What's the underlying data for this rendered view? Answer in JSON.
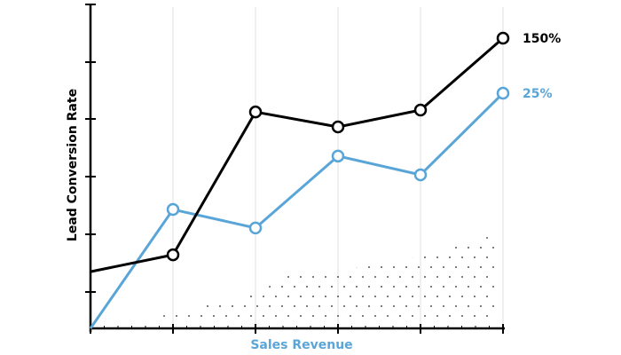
{
  "chart_data": {
    "type": "line",
    "title": "",
    "xlabel": "Sales Revenue",
    "ylabel": "Lead Conversion Rate",
    "x": [
      0,
      1,
      2,
      3,
      4,
      5
    ],
    "ylim": [
      0,
      100
    ],
    "grid": "vertical",
    "series": [
      {
        "values": [
          17.5,
          22.7,
          66.8,
          62.2,
          67.4,
          89.6
        ],
        "color": "#000000",
        "end_label": "150%"
      },
      {
        "values": [
          0,
          36.7,
          31.0,
          53.2,
          47.4,
          72.6
        ],
        "color": "#5aa5d8",
        "end_label": "25%"
      }
    ],
    "colors": {
      "axis": "#000000",
      "xlabel": "#5aa5d8",
      "grid": "#ececec"
    }
  }
}
